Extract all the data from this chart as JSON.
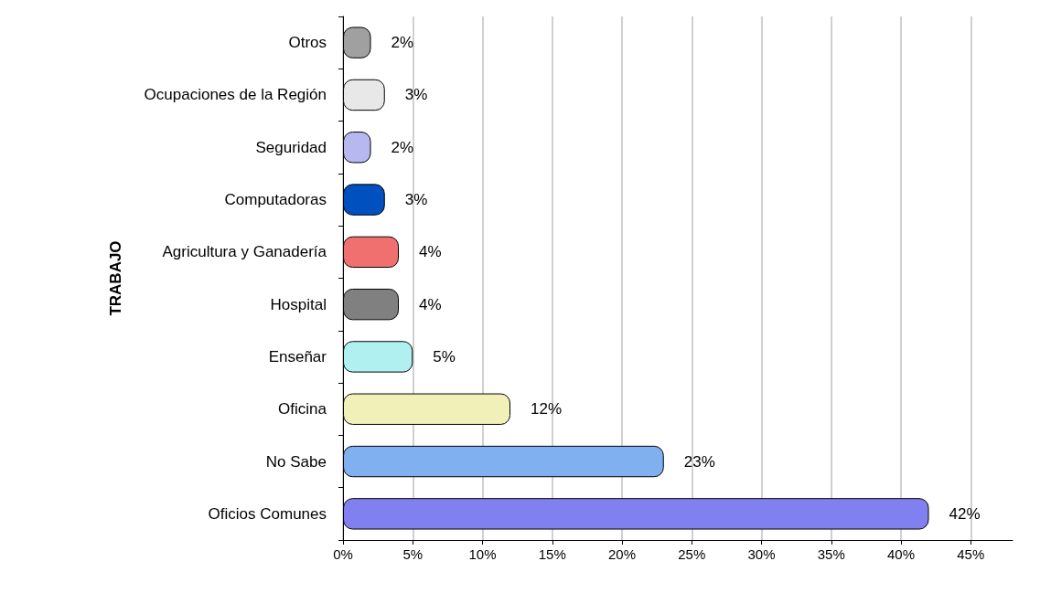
{
  "chart_data": {
    "type": "bar",
    "orientation": "horizontal",
    "ylabel": "TRABAJO",
    "categories": [
      "Otros",
      "Ocupaciones de la Región",
      "Seguridad",
      "Computadoras",
      "Agricultura y Ganadería",
      "Hospital",
      "Enseñar",
      "Oficina",
      "No Sabe",
      "Oficios Comunes"
    ],
    "values": [
      2,
      3,
      2,
      3,
      4,
      4,
      5,
      12,
      23,
      42
    ],
    "value_labels": [
      "2%",
      "3%",
      "2%",
      "3%",
      "4%",
      "4%",
      "5%",
      "12%",
      "23%",
      "42%"
    ],
    "colors": [
      "#a0a0a0",
      "#e8e8e8",
      "#b8b8f0",
      "#0050c0",
      "#f07070",
      "#808080",
      "#b0f0f0",
      "#f0f0b8",
      "#80b0f0",
      "#8080f0"
    ],
    "xlim": [
      0,
      48
    ],
    "xticks": [
      {
        "value": 0,
        "label": "0%"
      },
      {
        "value": 5,
        "label": "5%"
      },
      {
        "value": 10,
        "label": "10%"
      },
      {
        "value": 15,
        "label": "15%"
      },
      {
        "value": 20,
        "label": "20%"
      },
      {
        "value": 25,
        "label": "25%"
      },
      {
        "value": 30,
        "label": "30%"
      },
      {
        "value": 35,
        "label": "35%"
      },
      {
        "value": 40,
        "label": "40%"
      },
      {
        "value": 45,
        "label": "45%"
      }
    ],
    "grid": "x"
  }
}
